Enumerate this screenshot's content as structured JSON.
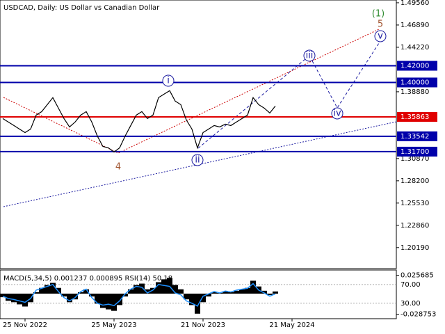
{
  "chart_data": [
    {
      "type": "line",
      "title": "USDCAD, Daily:  US Dollar vs Canadian Dollar",
      "categories": [
        null,
        null,
        null,
        null,
        "25 Nov 2022",
        null,
        null,
        null,
        null,
        null,
        null,
        null,
        null,
        null,
        null,
        null,
        null,
        null,
        null,
        null,
        "25 May 2023",
        null,
        null,
        null,
        null,
        null,
        null,
        null,
        null,
        null,
        null,
        null,
        null,
        null,
        null,
        null,
        "21 Nov 2023",
        null,
        null,
        null,
        null,
        null,
        null,
        null,
        null,
        null,
        null,
        null,
        null,
        null,
        null,
        null,
        "21 May 2024"
      ],
      "series": [
        {
          "color": "#000000",
          "values": [
            1.3567,
            1.3525,
            1.3483,
            1.3441,
            1.3399,
            1.3441,
            1.3608,
            1.365,
            1.3734,
            1.3818,
            1.3692,
            1.3567,
            1.3466,
            1.3525,
            1.3608,
            1.365,
            1.3525,
            1.3357,
            1.3232,
            1.3215,
            1.3165,
            1.3215,
            1.3357,
            1.3483,
            1.3608,
            1.365,
            1.3567,
            1.3608,
            1.3818,
            1.386,
            1.3901,
            1.3776,
            1.3734,
            1.355,
            1.3441,
            1.3215,
            1.3399,
            1.3441,
            1.3483,
            1.3466,
            1.35,
            1.3483,
            1.3525,
            1.3567,
            1.3608,
            1.3818,
            1.3734,
            1.3692,
            1.3634,
            1.3717,
            null,
            null,
            null
          ]
        }
      ],
      "ylim": [
        1.1767,
        1.4989
      ],
      "yticks": [
        {
          "value": 1.4956,
          "label": "1.49560"
        },
        {
          "value": 1.4689,
          "label": "1.46890"
        },
        {
          "value": 1.4422,
          "label": "1.44220"
        },
        {
          "value": 1.3888,
          "label": "1.38880"
        },
        {
          "value": 1.3087,
          "label": "1.30870"
        },
        {
          "value": 1.282,
          "label": "1.28200"
        },
        {
          "value": 1.2553,
          "label": "1.25530"
        },
        {
          "value": 1.2286,
          "label": "1.22860"
        },
        {
          "value": 1.2019,
          "label": "1.20190"
        }
      ],
      "levels": [
        {
          "value": 1.42,
          "label": "1.42000",
          "color": "#0000aa"
        },
        {
          "value": 1.4,
          "label": "1.40000",
          "color": "#0000aa"
        },
        {
          "value": 1.35863,
          "label": "1.35863",
          "color": "#e00000"
        },
        {
          "value": 1.33542,
          "label": "1.33542",
          "color": "#0000aa"
        },
        {
          "value": 1.317,
          "label": "1.31700",
          "color": "#0000aa"
        }
      ],
      "annotations": [
        {
          "text": "(1)",
          "color": "#2e8b2e"
        },
        {
          "text": "5",
          "color": "#a0522d"
        },
        {
          "text": "4",
          "color": "#a0522d"
        },
        {
          "text": "i",
          "color": "#1a1aa0"
        },
        {
          "text": "ii",
          "color": "#1a1aa0"
        },
        {
          "text": "iii",
          "color": "#1a1aa0"
        },
        {
          "text": "iv",
          "color": "#1a1aa0"
        },
        {
          "text": "v",
          "color": "#1a1aa0"
        }
      ]
    },
    {
      "type": "indicator",
      "title": "MACD(5,34,5) 0.001237 0.000895 RSI(14) 50.18",
      "ylim": [
        -3,
        101
      ],
      "yticks": [
        {
          "value": 70,
          "label": "70.00"
        },
        {
          "value": 30,
          "label": "30.00"
        }
      ],
      "y2lim": [
        -0.035,
        0.033
      ],
      "y2ticks": [
        0.025685,
        -0.028753
      ],
      "series": [
        {
          "name": "MACD",
          "color": "#000000",
          "axis": "y2",
          "values": [
            -0.005,
            -0.01,
            -0.012,
            -0.015,
            -0.018,
            -0.012,
            0.002,
            0.008,
            0.012,
            0.015,
            0.008,
            -0.004,
            -0.012,
            -0.008,
            0.002,
            0.006,
            -0.004,
            -0.014,
            -0.02,
            -0.022,
            -0.024,
            -0.016,
            -0.004,
            0.006,
            0.012,
            0.014,
            0.006,
            0.008,
            0.016,
            0.02,
            0.022,
            0.012,
            0.006,
            -0.008,
            -0.016,
            -0.028,
            -0.012,
            -0.004,
            0.002,
            0.001,
            0.003,
            0.002,
            0.004,
            0.006,
            0.008,
            0.018,
            0.01,
            0.004,
            -0.002,
            0.003,
            null,
            null,
            null
          ]
        },
        {
          "name": "RSI",
          "color": "#1e90ff",
          "values": [
            45,
            40,
            38,
            35,
            32,
            40,
            58,
            62,
            66,
            70,
            55,
            42,
            35,
            42,
            55,
            60,
            42,
            30,
            26,
            28,
            25,
            35,
            50,
            60,
            66,
            64,
            52,
            58,
            70,
            68,
            66,
            52,
            48,
            35,
            30,
            24,
            45,
            50,
            55,
            52,
            56,
            54,
            58,
            60,
            62,
            72,
            58,
            52,
            45,
            50,
            null,
            null,
            null
          ]
        }
      ]
    }
  ]
}
